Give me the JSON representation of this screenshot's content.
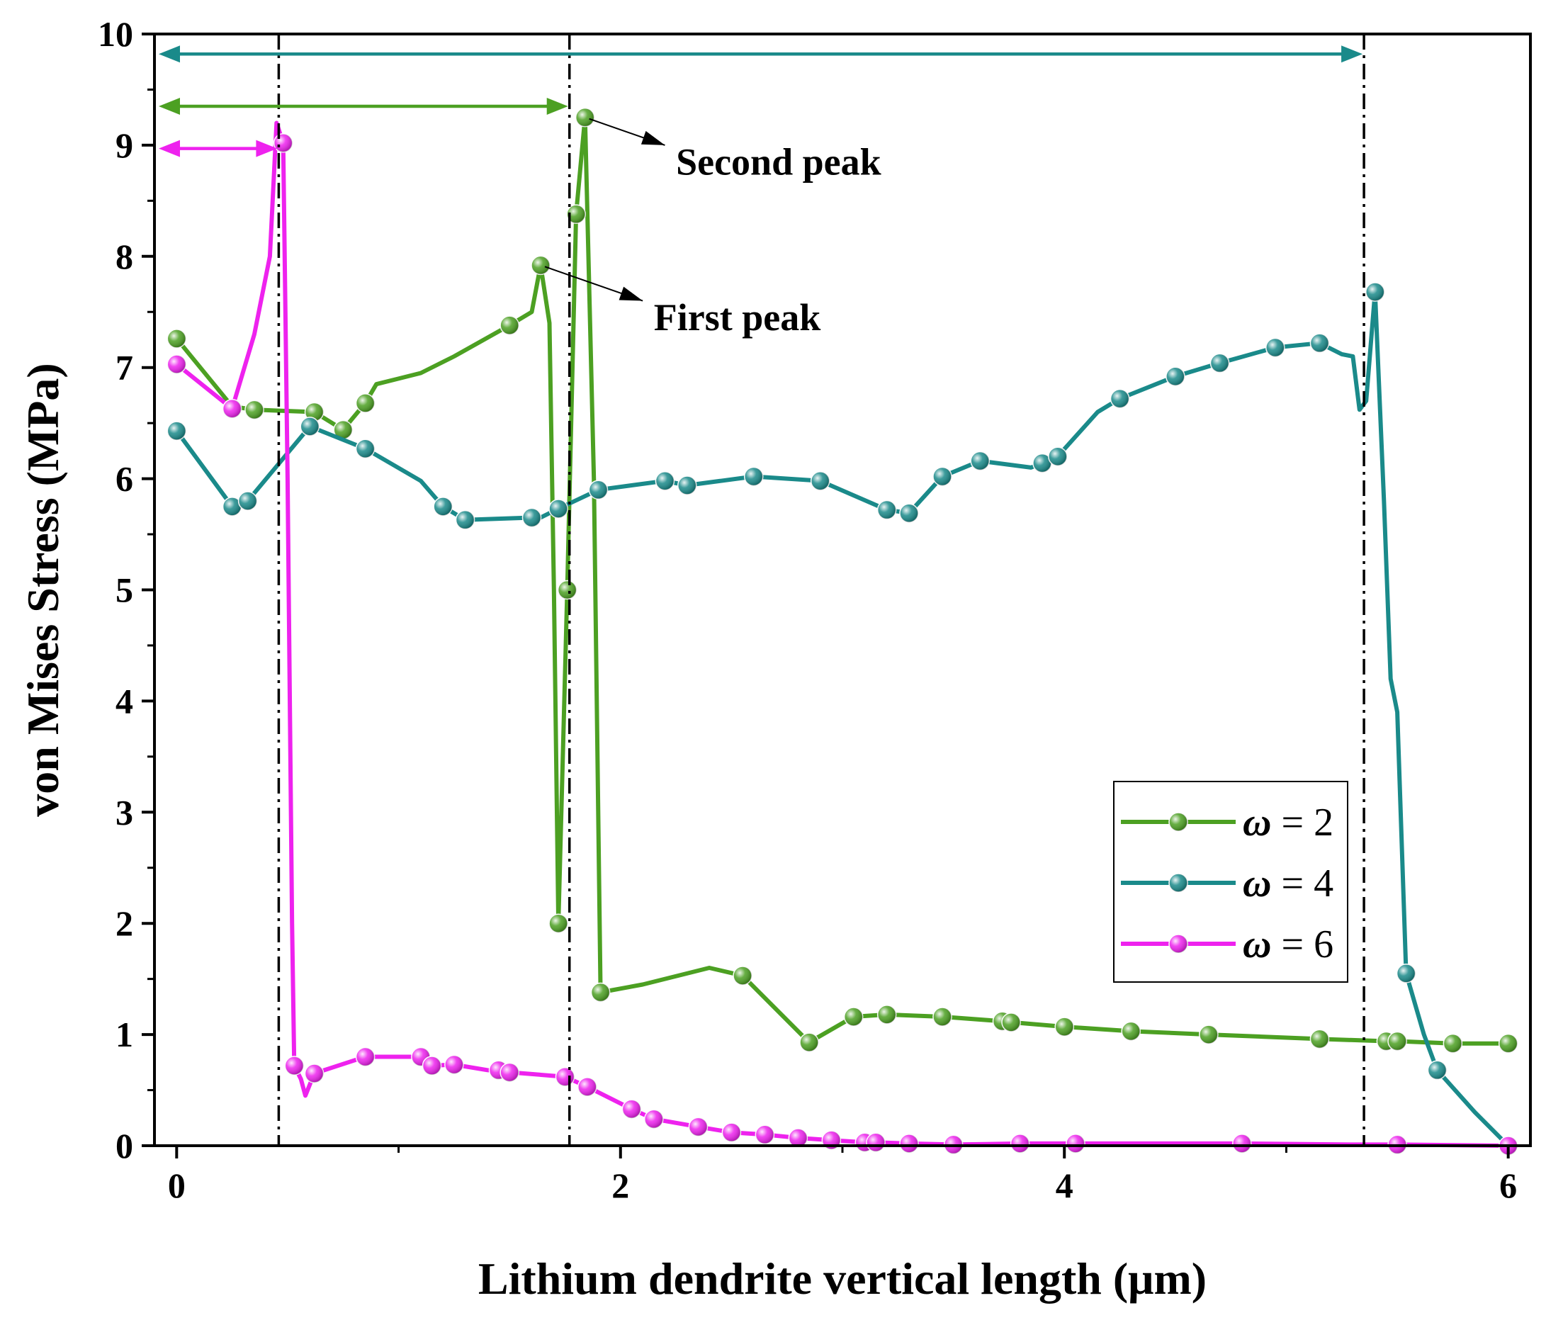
{
  "chart_data": {
    "type": "line",
    "title": "",
    "xlabel": "Lithium dendrite vertical length (μm)",
    "ylabel": "von Mises Stress (MPa)",
    "xlim": [
      -0.1,
      6.1
    ],
    "ylim": [
      0,
      10
    ],
    "xticks": [
      0,
      2,
      4,
      6
    ],
    "yticks": [
      0,
      1,
      2,
      3,
      4,
      5,
      6,
      7,
      8,
      9,
      10
    ],
    "grid": false,
    "legend_position": "bottom-right",
    "series": [
      {
        "name": "ω = 2",
        "symbol": "ω",
        "label_rest": " = 2",
        "color": "#4CA022",
        "points": [
          [
            0,
            7.26
          ],
          [
            0.25,
            6.65
          ],
          [
            0.35,
            6.62
          ],
          [
            0.62,
            6.6
          ],
          [
            0.75,
            6.44
          ],
          [
            0.85,
            6.68
          ],
          [
            0.9,
            6.85
          ],
          [
            1.0,
            6.9
          ],
          [
            1.1,
            6.95
          ],
          [
            1.25,
            7.1
          ],
          [
            1.5,
            7.38
          ],
          [
            1.6,
            7.5
          ],
          [
            1.64,
            7.92
          ],
          [
            1.68,
            7.4
          ],
          [
            1.7,
            5.0
          ],
          [
            1.72,
            2.0
          ],
          [
            1.76,
            5.0
          ],
          [
            1.8,
            8.38
          ],
          [
            1.84,
            9.25
          ],
          [
            1.88,
            6.0
          ],
          [
            1.91,
            1.38
          ],
          [
            2.1,
            1.45
          ],
          [
            2.4,
            1.6
          ],
          [
            2.55,
            1.53
          ],
          [
            2.85,
            0.93
          ],
          [
            3.05,
            1.16
          ],
          [
            3.2,
            1.18
          ],
          [
            3.45,
            1.16
          ],
          [
            3.72,
            1.12
          ],
          [
            3.76,
            1.11
          ],
          [
            4.0,
            1.07
          ],
          [
            4.3,
            1.03
          ],
          [
            4.65,
            1.0
          ],
          [
            5.15,
            0.96
          ],
          [
            5.45,
            0.94
          ],
          [
            5.5,
            0.94
          ],
          [
            5.75,
            0.92
          ],
          [
            6.0,
            0.92
          ]
        ],
        "markers": [
          [
            0,
            7.26
          ],
          [
            0.35,
            6.62
          ],
          [
            0.62,
            6.6
          ],
          [
            0.75,
            6.44
          ],
          [
            0.85,
            6.68
          ],
          [
            1.5,
            7.38
          ],
          [
            1.64,
            7.92
          ],
          [
            1.72,
            2.0
          ],
          [
            1.76,
            5.0
          ],
          [
            1.8,
            8.38
          ],
          [
            1.84,
            9.25
          ],
          [
            1.91,
            1.38
          ],
          [
            2.55,
            1.53
          ],
          [
            2.85,
            0.93
          ],
          [
            3.05,
            1.16
          ],
          [
            3.2,
            1.18
          ],
          [
            3.45,
            1.16
          ],
          [
            3.72,
            1.12
          ],
          [
            3.76,
            1.11
          ],
          [
            4.0,
            1.07
          ],
          [
            4.3,
            1.03
          ],
          [
            4.65,
            1.0
          ],
          [
            5.15,
            0.96
          ],
          [
            5.45,
            0.94
          ],
          [
            5.5,
            0.94
          ],
          [
            5.75,
            0.92
          ],
          [
            6.0,
            0.92
          ]
        ]
      },
      {
        "name": "ω = 4",
        "symbol": "ω",
        "label_rest": " = 4",
        "color": "#1A8A8A",
        "points": [
          [
            0,
            6.43
          ],
          [
            0.25,
            5.75
          ],
          [
            0.32,
            5.8
          ],
          [
            0.6,
            6.47
          ],
          [
            0.85,
            6.27
          ],
          [
            1.1,
            5.98
          ],
          [
            1.2,
            5.75
          ],
          [
            1.3,
            5.63
          ],
          [
            1.6,
            5.65
          ],
          [
            1.64,
            5.65
          ],
          [
            1.72,
            5.73
          ],
          [
            1.9,
            5.9
          ],
          [
            2.2,
            5.98
          ],
          [
            2.3,
            5.94
          ],
          [
            2.6,
            6.02
          ],
          [
            2.9,
            5.98
          ],
          [
            3.2,
            5.72
          ],
          [
            3.3,
            5.69
          ],
          [
            3.45,
            6.02
          ],
          [
            3.62,
            6.16
          ],
          [
            3.85,
            6.1
          ],
          [
            3.9,
            6.14
          ],
          [
            3.97,
            6.2
          ],
          [
            4.15,
            6.6
          ],
          [
            4.25,
            6.72
          ],
          [
            4.5,
            6.92
          ],
          [
            4.7,
            7.04
          ],
          [
            4.95,
            7.18
          ],
          [
            5.15,
            7.22
          ],
          [
            5.25,
            7.12
          ],
          [
            5.3,
            7.1
          ],
          [
            5.33,
            6.62
          ],
          [
            5.36,
            6.7
          ],
          [
            5.4,
            7.68
          ],
          [
            5.44,
            5.8
          ],
          [
            5.47,
            4.2
          ],
          [
            5.5,
            3.9
          ],
          [
            5.54,
            1.55
          ],
          [
            5.62,
            1.0
          ],
          [
            5.68,
            0.68
          ],
          [
            5.85,
            0.3
          ],
          [
            6.0,
            0.0
          ]
        ],
        "markers": [
          [
            0,
            6.43
          ],
          [
            0.25,
            5.75
          ],
          [
            0.32,
            5.8
          ],
          [
            0.6,
            6.47
          ],
          [
            0.85,
            6.27
          ],
          [
            1.2,
            5.75
          ],
          [
            1.3,
            5.63
          ],
          [
            1.6,
            5.65
          ],
          [
            1.72,
            5.73
          ],
          [
            1.9,
            5.9
          ],
          [
            2.2,
            5.98
          ],
          [
            2.3,
            5.94
          ],
          [
            2.6,
            6.02
          ],
          [
            2.9,
            5.98
          ],
          [
            3.2,
            5.72
          ],
          [
            3.3,
            5.69
          ],
          [
            3.45,
            6.02
          ],
          [
            3.62,
            6.16
          ],
          [
            3.9,
            6.14
          ],
          [
            3.97,
            6.2
          ],
          [
            4.25,
            6.72
          ],
          [
            4.5,
            6.92
          ],
          [
            4.7,
            7.04
          ],
          [
            4.95,
            7.18
          ],
          [
            5.15,
            7.22
          ],
          [
            5.4,
            7.68
          ],
          [
            5.54,
            1.55
          ],
          [
            5.68,
            0.68
          ]
        ]
      },
      {
        "name": "ω = 6",
        "symbol": "ω",
        "label_rest": " = 6",
        "color": "#EE22EE",
        "points": [
          [
            0,
            7.03
          ],
          [
            0.25,
            6.63
          ],
          [
            0.35,
            7.3
          ],
          [
            0.42,
            8.0
          ],
          [
            0.45,
            9.2
          ],
          [
            0.48,
            9.02
          ],
          [
            0.5,
            6.0
          ],
          [
            0.52,
            2.0
          ],
          [
            0.53,
            0.72
          ],
          [
            0.56,
            0.6
          ],
          [
            0.58,
            0.45
          ],
          [
            0.62,
            0.65
          ],
          [
            0.85,
            0.8
          ],
          [
            1.0,
            0.8
          ],
          [
            1.1,
            0.8
          ],
          [
            1.15,
            0.72
          ],
          [
            1.25,
            0.73
          ],
          [
            1.4,
            0.68
          ],
          [
            1.5,
            0.66
          ],
          [
            1.75,
            0.62
          ],
          [
            1.85,
            0.53
          ],
          [
            2.05,
            0.33
          ],
          [
            2.15,
            0.24
          ],
          [
            2.35,
            0.17
          ],
          [
            2.5,
            0.12
          ],
          [
            2.65,
            0.1
          ],
          [
            2.8,
            0.07
          ],
          [
            2.95,
            0.05
          ],
          [
            3.1,
            0.03
          ],
          [
            3.15,
            0.03
          ],
          [
            3.3,
            0.02
          ],
          [
            3.5,
            0.01
          ],
          [
            3.8,
            0.02
          ],
          [
            4.05,
            0.02
          ],
          [
            4.5,
            0.02
          ],
          [
            4.8,
            0.02
          ],
          [
            5.3,
            0.01
          ],
          [
            5.5,
            0.01
          ],
          [
            6.0,
            0.0
          ]
        ],
        "markers": [
          [
            0,
            7.03
          ],
          [
            0.25,
            6.63
          ],
          [
            0.48,
            9.02
          ],
          [
            0.53,
            0.72
          ],
          [
            0.62,
            0.65
          ],
          [
            0.85,
            0.8
          ],
          [
            1.1,
            0.8
          ],
          [
            1.15,
            0.72
          ],
          [
            1.25,
            0.73
          ],
          [
            1.45,
            0.68
          ],
          [
            1.5,
            0.66
          ],
          [
            1.75,
            0.62
          ],
          [
            1.85,
            0.53
          ],
          [
            2.05,
            0.33
          ],
          [
            2.15,
            0.24
          ],
          [
            2.35,
            0.17
          ],
          [
            2.5,
            0.12
          ],
          [
            2.65,
            0.1
          ],
          [
            2.8,
            0.07
          ],
          [
            2.95,
            0.05
          ],
          [
            3.1,
            0.03
          ],
          [
            3.15,
            0.03
          ],
          [
            3.3,
            0.02
          ],
          [
            3.5,
            0.01
          ],
          [
            3.8,
            0.02
          ],
          [
            4.05,
            0.02
          ],
          [
            4.8,
            0.02
          ],
          [
            5.5,
            0.01
          ],
          [
            6.0,
            0.0
          ]
        ]
      }
    ],
    "vertical_lines": [
      {
        "x": 0.46,
        "style": "dash-dot",
        "color": "#000000"
      },
      {
        "x": 1.77,
        "style": "dash-dot",
        "color": "#000000"
      },
      {
        "x": 5.35,
        "style": "dash-dot",
        "color": "#000000"
      }
    ],
    "range_arrows": [
      {
        "x1": -0.1,
        "x2": 5.35,
        "y": 9.82,
        "color": "#1A8A8A"
      },
      {
        "x1": -0.1,
        "x2": 1.77,
        "y": 9.35,
        "color": "#4CA022"
      },
      {
        "x1": -0.1,
        "x2": 0.46,
        "y": 8.97,
        "color": "#EE22EE"
      }
    ],
    "annotations": [
      {
        "text": "Second peak",
        "from": [
          1.84,
          9.25
        ],
        "to": [
          2.2,
          9.0
        ],
        "text_at": [
          2.25,
          8.85
        ]
      },
      {
        "text": "First peak",
        "from": [
          1.64,
          7.92
        ],
        "to": [
          2.1,
          7.6
        ],
        "text_at": [
          2.15,
          7.45
        ]
      }
    ]
  }
}
